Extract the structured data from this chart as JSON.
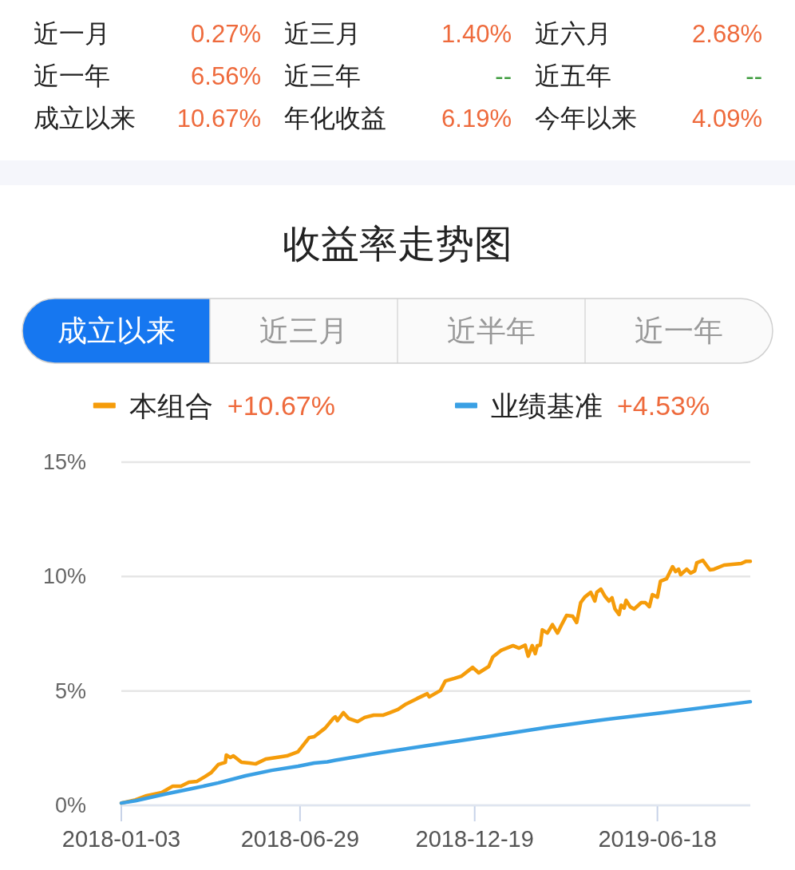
{
  "chart_data": [
    {
      "type": "other",
      "annotations": [
        "近一月",
        "0.27%",
        "近三月",
        "1.40%",
        "近六月",
        "2.68%",
        "近一年",
        "6.56%",
        "近三年",
        "--",
        "近五年",
        "--",
        "成立以来",
        "10.67%",
        "年化收益",
        "6.19%",
        "今年以来",
        "4.09%"
      ],
      "colors": [
        "#222222",
        "#ee6a3c",
        "#222222",
        "#ee6a3c",
        "#222222",
        "#ee6a3c",
        "#222222",
        "#ee6a3c",
        "#222222",
        "#3c9b3c",
        "#222222",
        "#3c9b3c",
        "#222222",
        "#ee6a3c",
        "#222222",
        "#ee6a3c",
        "#222222",
        "#ee6a3c"
      ]
    },
    {
      "type": "other",
      "annotations": [
        "成立以来",
        "近三月",
        "近半年",
        "近一年"
      ],
      "colors": [
        "#1677f0",
        "#fafafa",
        "#fafafa",
        "#fafafa"
      ]
    },
    {
      "type": "line",
      "title": "收益率走势图",
      "xlim": [
        "2018-01-03",
        "2019-09-18"
      ],
      "xticks": [
        "2018-01-03",
        "2018-06-29",
        "2018-12-19",
        "2019-06-18"
      ],
      "ylim": [
        0,
        15
      ],
      "yticks": [
        {
          "value": 0,
          "label": "0%"
        },
        {
          "value": 5,
          "label": "5%"
        },
        {
          "value": 10,
          "label": "10%"
        },
        {
          "value": 15,
          "label": "15%"
        }
      ],
      "grid": "y",
      "legend": "top",
      "line_style": "solid",
      "annotations": [
        "+10.67%",
        "+4.53%"
      ],
      "series": [
        {
          "name": "本组合",
          "color": "#f59c0a",
          "x": [
            "2018-01-03",
            "2018-01-17",
            "2018-01-28",
            "2018-02-12",
            "2018-02-23",
            "2018-03-03",
            "2018-03-11",
            "2018-03-19",
            "2018-03-27",
            "2018-04-02",
            "2018-04-09",
            "2018-04-16",
            "2018-04-17",
            "2018-04-21",
            "2018-04-24",
            "2018-05-02",
            "2018-05-10",
            "2018-05-16",
            "2018-05-26",
            "2018-06-11",
            "2018-06-16",
            "2018-06-27",
            "2018-07-08",
            "2018-07-13",
            "2018-07-24",
            "2018-08-01",
            "2018-08-03",
            "2018-08-05",
            "2018-08-11",
            "2018-08-16",
            "2018-08-25",
            "2018-09-01",
            "2018-09-10",
            "2018-09-19",
            "2018-09-26",
            "2018-10-04",
            "2018-10-11",
            "2018-10-23",
            "2018-11-02",
            "2018-11-04",
            "2018-11-15",
            "2018-11-20",
            "2018-11-29",
            "2018-12-06",
            "2018-12-17",
            "2018-12-23",
            "2019-01-02",
            "2019-01-06",
            "2019-01-14",
            "2019-01-26",
            "2019-02-01",
            "2019-02-07",
            "2019-02-10",
            "2019-02-14",
            "2019-02-17",
            "2019-02-19",
            "2019-02-22",
            "2019-02-24",
            "2019-03-01",
            "2019-03-06",
            "2019-03-11",
            "2019-03-15",
            "2019-03-20",
            "2019-03-26",
            "2019-03-30",
            "2019-04-03",
            "2019-04-07",
            "2019-04-13",
            "2019-04-17",
            "2019-04-19",
            "2019-04-23",
            "2019-04-27",
            "2019-05-01",
            "2019-05-04",
            "2019-05-07",
            "2019-05-11",
            "2019-05-13",
            "2019-05-16",
            "2019-05-18",
            "2019-05-22",
            "2019-05-26",
            "2019-06-02",
            "2019-06-06",
            "2019-06-10",
            "2019-06-13",
            "2019-06-18",
            "2019-06-21",
            "2019-06-27",
            "2019-07-03",
            "2019-07-06",
            "2019-07-09",
            "2019-07-11",
            "2019-07-17",
            "2019-07-21",
            "2019-07-25",
            "2019-07-27",
            "2019-08-02",
            "2019-08-09",
            "2019-08-13",
            "2019-08-23",
            "2019-09-09",
            "2019-09-14",
            "2019-09-18"
          ],
          "values": [
            0.1,
            0.24,
            0.42,
            0.56,
            0.84,
            0.84,
            1.01,
            1.05,
            1.26,
            1.43,
            1.78,
            1.88,
            2.2,
            2.09,
            2.16,
            1.88,
            1.85,
            1.81,
            2.02,
            2.13,
            2.16,
            2.34,
            2.96,
            3.0,
            3.38,
            3.8,
            3.87,
            3.7,
            4.05,
            3.8,
            3.66,
            3.84,
            3.94,
            3.94,
            4.05,
            4.19,
            4.4,
            4.67,
            4.88,
            4.74,
            5.02,
            5.44,
            5.55,
            5.65,
            6.03,
            5.79,
            6.07,
            6.49,
            6.77,
            6.98,
            6.87,
            7.0,
            6.52,
            6.98,
            6.63,
            6.98,
            7.0,
            7.67,
            7.53,
            7.9,
            7.53,
            7.88,
            8.3,
            8.27,
            7.99,
            8.86,
            9.1,
            9.31,
            8.93,
            9.31,
            9.45,
            9.14,
            8.93,
            9.07,
            8.58,
            8.34,
            8.75,
            8.62,
            8.96,
            8.68,
            8.58,
            8.86,
            8.86,
            8.68,
            9.21,
            9.1,
            9.8,
            9.9,
            10.43,
            10.22,
            10.32,
            10.08,
            10.32,
            10.15,
            10.25,
            10.6,
            10.71,
            10.29,
            10.32,
            10.5,
            10.57,
            10.67,
            10.67
          ]
        },
        {
          "name": "业绩基准",
          "color": "#3aa0e4",
          "x": [
            "2018-01-03",
            "2018-01-17",
            "2018-02-15",
            "2018-03-14",
            "2018-04-09",
            "2018-05-06",
            "2018-06-01",
            "2018-06-27",
            "2018-07-13",
            "2018-07-26",
            "2018-08-03",
            "2018-09-17",
            "2018-11-08",
            "2018-12-31",
            "2019-02-28",
            "2019-04-18",
            "2019-06-23",
            "2019-09-18"
          ],
          "values": [
            0.1,
            0.2,
            0.49,
            0.73,
            0.98,
            1.29,
            1.53,
            1.71,
            1.85,
            1.9,
            1.97,
            2.3,
            2.65,
            3.0,
            3.4,
            3.7,
            4.05,
            4.53
          ]
        }
      ]
    }
  ]
}
